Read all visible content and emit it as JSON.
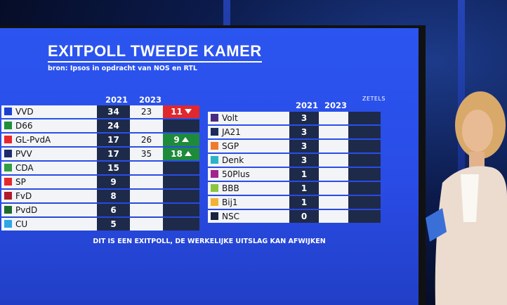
{
  "title": "EXITPOLL TWEEDE KAMER",
  "subtitle": "bron: Ipsos in opdracht van NOS en RTL",
  "headers": {
    "y2021": "2021",
    "y2023": "2023",
    "zetels": "ZETELS"
  },
  "left": [
    {
      "name": "VVD",
      "color": "#1a3fd6",
      "s2021": "34",
      "s2023": "23",
      "delta": "11",
      "dir": "down"
    },
    {
      "name": "D66",
      "color": "#1f8f3a",
      "s2021": "24",
      "s2023": "",
      "delta": "",
      "dir": ""
    },
    {
      "name": "GL-PvdA",
      "color": "#e8262e",
      "s2021": "17",
      "s2023": "26",
      "delta": "9",
      "dir": "up"
    },
    {
      "name": "PVV",
      "color": "#1c2b6b",
      "s2021": "17",
      "s2023": "35",
      "delta": "18",
      "dir": "up"
    },
    {
      "name": "CDA",
      "color": "#2f9e44",
      "s2021": "15",
      "s2023": "",
      "delta": "",
      "dir": ""
    },
    {
      "name": "SP",
      "color": "#e8262e",
      "s2021": "9",
      "s2023": "",
      "delta": "",
      "dir": ""
    },
    {
      "name": "FvD",
      "color": "#b31b2a",
      "s2021": "8",
      "s2023": "",
      "delta": "",
      "dir": ""
    },
    {
      "name": "PvdD",
      "color": "#1d6b2e",
      "s2021": "6",
      "s2023": "",
      "delta": "",
      "dir": ""
    },
    {
      "name": "CU",
      "color": "#2ea7e6",
      "s2021": "5",
      "s2023": "",
      "delta": "",
      "dir": ""
    }
  ],
  "right": [
    {
      "name": "Volt",
      "color": "#4b2a82",
      "s2021": "3",
      "s2023": "",
      "delta": "",
      "dir": ""
    },
    {
      "name": "JA21",
      "color": "#1c2b5a",
      "s2021": "3",
      "s2023": "",
      "delta": "",
      "dir": ""
    },
    {
      "name": "SGP",
      "color": "#f07a2b",
      "s2021": "3",
      "s2023": "",
      "delta": "",
      "dir": ""
    },
    {
      "name": "Denk",
      "color": "#2bb3c9",
      "s2021": "3",
      "s2023": "",
      "delta": "",
      "dir": ""
    },
    {
      "name": "50Plus",
      "color": "#a3238e",
      "s2021": "1",
      "s2023": "",
      "delta": "",
      "dir": ""
    },
    {
      "name": "BBB",
      "color": "#8bc53f",
      "s2021": "1",
      "s2023": "",
      "delta": "",
      "dir": ""
    },
    {
      "name": "Bij1",
      "color": "#f2b233",
      "s2021": "1",
      "s2023": "",
      "delta": "",
      "dir": ""
    },
    {
      "name": "NSC",
      "color": "#1b2240",
      "s2021": "0",
      "s2023": "",
      "delta": "",
      "dir": ""
    }
  ],
  "footnote": "DIT IS EEN EXITPOLL, DE WERKELIJKE UITSLAG KAN AFWIJKEN"
}
